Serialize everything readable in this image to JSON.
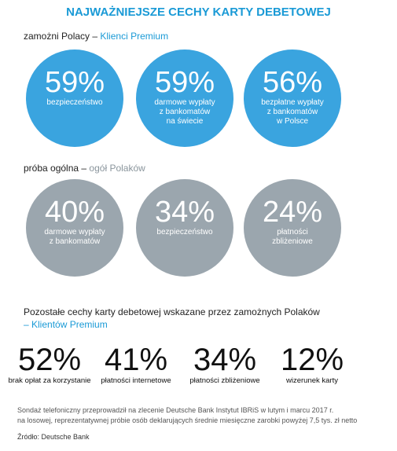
{
  "title": "NAJWAŻNIEJSZE CECHY KARTY DEBETOWEJ",
  "premium": {
    "label": "zamożni Polacy –",
    "highlight": "Klienci Premium",
    "items": [
      {
        "value": "59%",
        "lines": [
          "bezpieczeństwo"
        ]
      },
      {
        "value": "59%",
        "lines": [
          "darmowe wypłaty",
          "z bankomatów",
          "na świecie"
        ]
      },
      {
        "value": "56%",
        "lines": [
          "bezpłatne wypłaty",
          "z bankomatów",
          "w Polsce"
        ]
      }
    ]
  },
  "general": {
    "label": "próba ogólna –",
    "highlight": "ogół Polaków",
    "items": [
      {
        "value": "40%",
        "lines": [
          "darmowe wypłaty",
          "z bankomatów"
        ]
      },
      {
        "value": "34%",
        "lines": [
          "bezpieczeństwo"
        ]
      },
      {
        "value": "24%",
        "lines": [
          "płatności",
          "zbliżeniowe"
        ]
      }
    ]
  },
  "other": {
    "heading": "Pozostałe cechy karty debetowej wskazane przez zamożnych Polaków",
    "highlight": "– Klientów Premium",
    "items": [
      {
        "value": "52%",
        "label": "brak opłat za korzystanie"
      },
      {
        "value": "41%",
        "label": "płatności internetowe"
      },
      {
        "value": "34%",
        "label": "płatności zbliżeniowe"
      },
      {
        "value": "12%",
        "label": "wizerunek karty"
      }
    ]
  },
  "note": [
    "Sondaż telefoniczny przeprowadził na zlecenie Deutsche Bank  Instytut IBRiS w lutym i marcu 2017 r.",
    "na losowej, reprezentatywnej próbie osób deklarujących średnie miesięczne zarobki powyżej 7,5 tys. zł netto"
  ],
  "source": "Źródło: Deutsche Bank"
}
